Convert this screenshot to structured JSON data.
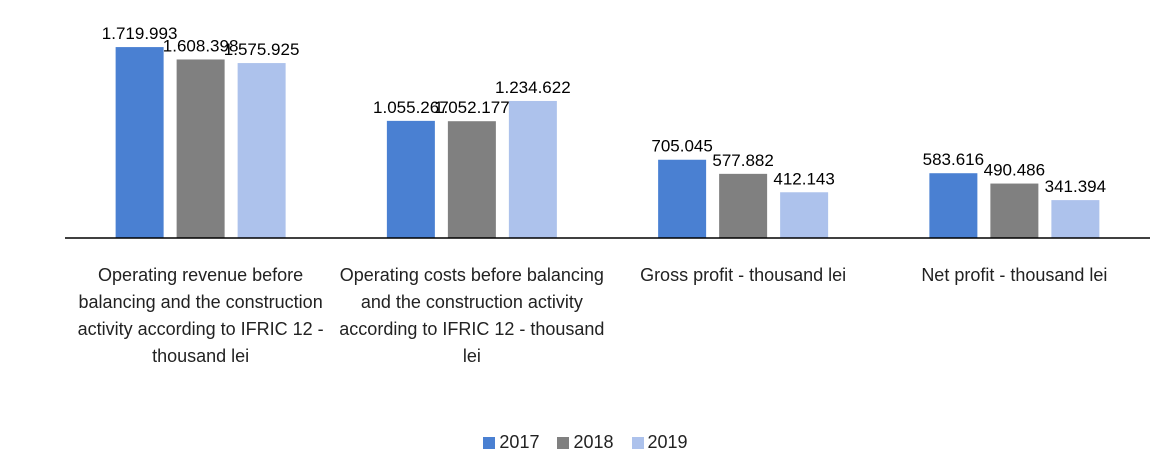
{
  "chart_data": {
    "type": "bar",
    "categories": [
      "Operating revenue before balancing and the construction activity according to IFRIC 12 - thousand lei",
      "Operating costs before balancing and the construction activity according to IFRIC 12 - thousand lei",
      "Gross profit - thousand lei",
      "Net profit - thousand lei"
    ],
    "series": [
      {
        "name": "2017",
        "color": "#4a80d2",
        "values": [
          1719993,
          1055267,
          705045,
          583616
        ],
        "value_labels": [
          "1.719.993",
          "1.055.267",
          "705.045",
          "583.616"
        ]
      },
      {
        "name": "2018",
        "color": "#808080",
        "values": [
          1608398,
          1052177,
          577882,
          490486
        ],
        "value_labels": [
          "1.608.398",
          "1.052.177",
          "577.882",
          "490.486"
        ]
      },
      {
        "name": "2019",
        "color": "#adc2ec",
        "values": [
          1575925,
          1234622,
          412143,
          341394
        ],
        "value_labels": [
          "1.575.925",
          "1.234.622",
          "412.143",
          "341.394"
        ]
      }
    ],
    "ylim": [
      0,
      2000000
    ],
    "legend": "bottom"
  }
}
